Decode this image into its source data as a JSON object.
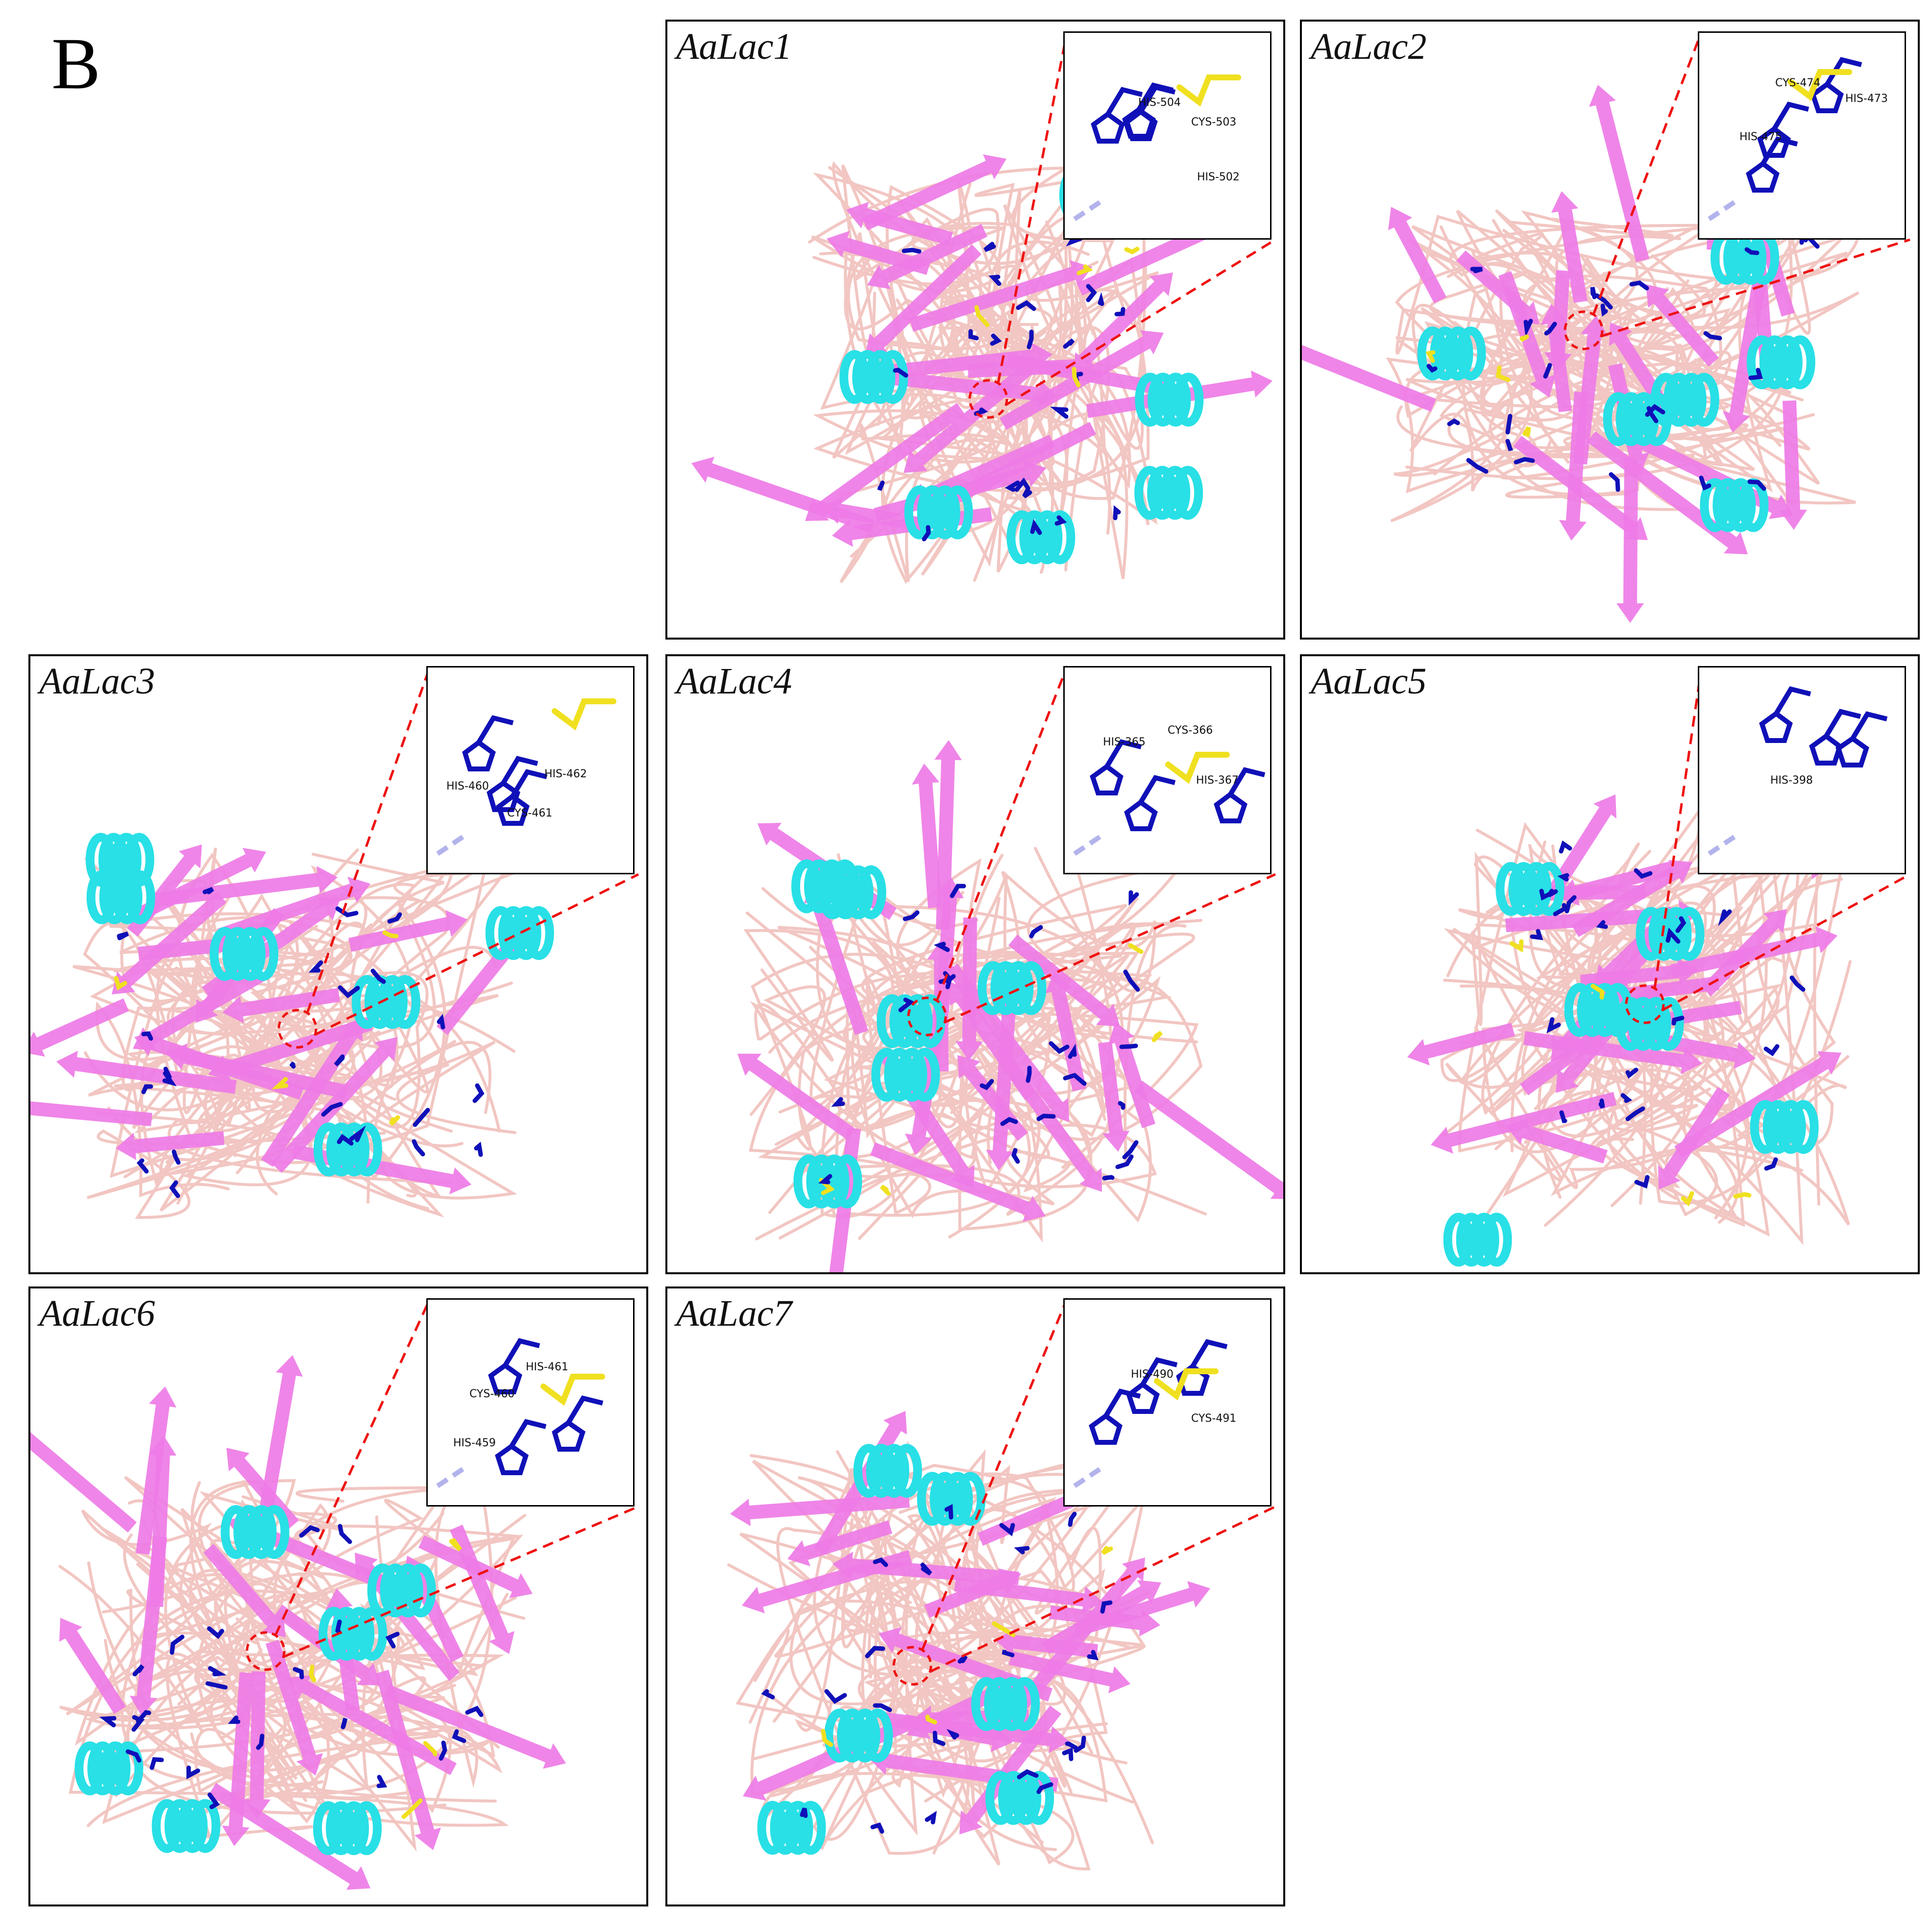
{
  "figure": {
    "label": "B"
  },
  "colors": {
    "sheet": "#ee7be6",
    "helix": "#28e0e6",
    "loop": "#f2c6c2",
    "histidine": "#1010b8",
    "cysteine": "#f0e020",
    "callout": "#ee1111",
    "frame": "#000000"
  },
  "panels": [
    {
      "title": "AaLac1",
      "residues": [
        "HIS-504",
        "CYS-503",
        "HIS-502"
      ]
    },
    {
      "title": "AaLac2",
      "residues": [
        "CYS-474",
        "HIS-473",
        "HIS-475"
      ]
    },
    {
      "title": "AaLac3",
      "residues": [
        "HIS-460",
        "HIS-462",
        "CYS-461"
      ]
    },
    {
      "title": "AaLac4",
      "residues": [
        "HIS-365",
        "CYS-366",
        "HIS-367"
      ]
    },
    {
      "title": "AaLac5",
      "residues": [
        "HIS-398"
      ]
    },
    {
      "title": "AaLac6",
      "residues": [
        "HIS-461",
        "CYS-460",
        "HIS-459"
      ]
    },
    {
      "title": "AaLac7",
      "residues": [
        "HIS-490",
        "CYS-491"
      ]
    }
  ]
}
